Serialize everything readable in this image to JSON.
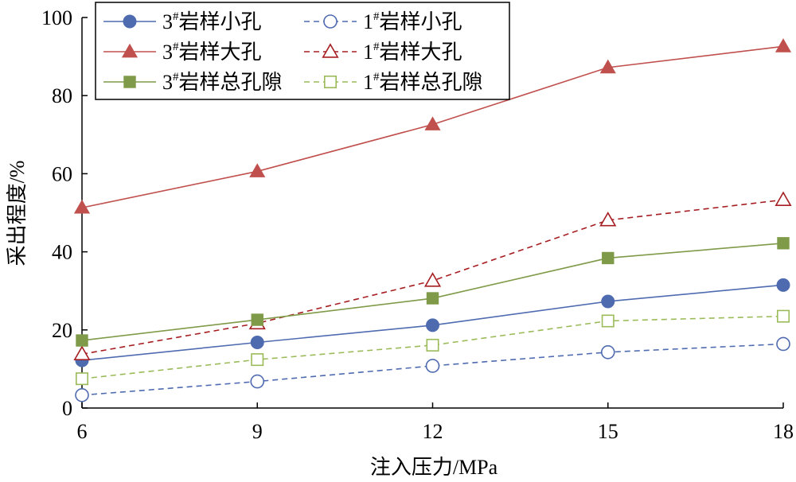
{
  "chart_data": {
    "type": "line",
    "title": "",
    "xlabel": "注入压力/MPa",
    "ylabel": "采出程度/%",
    "x": [
      6,
      9,
      12,
      15,
      18
    ],
    "xticks": [
      "6",
      "9",
      "12",
      "15",
      "18"
    ],
    "yticks": [
      "0",
      "20",
      "40",
      "60",
      "80",
      "100"
    ],
    "xlim": [
      6,
      18
    ],
    "ylim": [
      0,
      100
    ],
    "grid": false,
    "legend_position": "top-left",
    "series": [
      {
        "name": "3#岩样小孔",
        "prefix": "3",
        "sup": "#",
        "label": "岩样小孔",
        "values": [
          12.2,
          16.8,
          21.2,
          27.3,
          31.5
        ],
        "color": "#4F6BB0",
        "marker": "circle",
        "fill": "filled",
        "dash": "solid"
      },
      {
        "name": "1#岩样小孔",
        "prefix": "1",
        "sup": "#",
        "label": "岩样小孔",
        "values": [
          3.3,
          6.8,
          10.8,
          14.3,
          16.4
        ],
        "color": "#4F6BB0",
        "marker": "circle",
        "fill": "hollow",
        "dash": "dashed"
      },
      {
        "name": "3#岩样大孔",
        "prefix": "3",
        "sup": "#",
        "label": "岩样大孔",
        "values": [
          51.3,
          60.6,
          72.6,
          87.2,
          92.6
        ],
        "color": "#C0504D",
        "marker": "triangle",
        "fill": "filled",
        "dash": "solid"
      },
      {
        "name": "1#岩样大孔",
        "prefix": "1",
        "sup": "#",
        "label": "岩样大孔",
        "values": [
          13.8,
          21.7,
          32.6,
          48.1,
          53.3
        ],
        "color": "#A61E22",
        "marker": "triangle",
        "fill": "hollow",
        "dash": "dashed"
      },
      {
        "name": "3#岩样总孔隙",
        "prefix": "3",
        "sup": "#",
        "label": "岩样总孔隙",
        "values": [
          17.3,
          22.6,
          28.1,
          38.4,
          42.2
        ],
        "color": "#7F9A48",
        "marker": "square",
        "fill": "filled",
        "dash": "solid"
      },
      {
        "name": "1#岩样总孔隙",
        "prefix": "1",
        "sup": "#",
        "label": "岩样总孔隙",
        "values": [
          7.5,
          12.4,
          16.1,
          22.3,
          23.5
        ],
        "color": "#9BBB59",
        "marker": "square",
        "fill": "hollow",
        "dash": "dashed"
      }
    ]
  }
}
